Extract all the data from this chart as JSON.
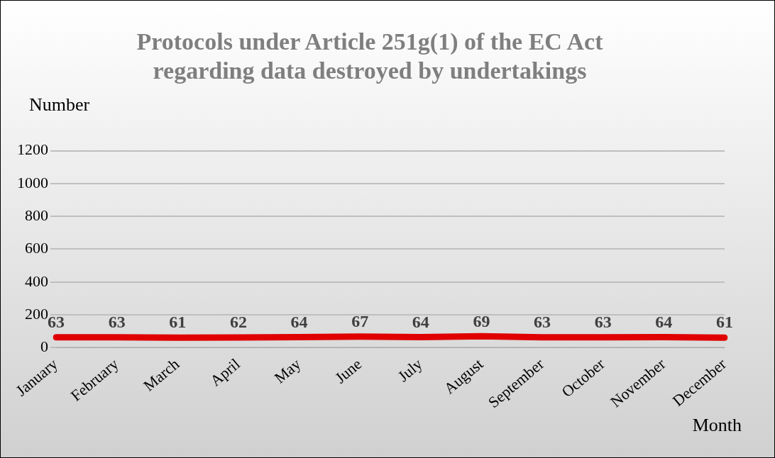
{
  "chart_data": {
    "type": "line",
    "title": "Protocols under Article 251g(1) of the EC Act\nregarding data destroyed by undertakings",
    "xlabel": "Month",
    "ylabel": "Number",
    "categories": [
      "January",
      "February",
      "March",
      "April",
      "May",
      "June",
      "July",
      "August",
      "September",
      "October",
      "November",
      "December"
    ],
    "series": [
      {
        "color": "#e00000",
        "values": [
          63,
          63,
          61,
          62,
          64,
          67,
          64,
          69,
          63,
          63,
          64,
          61
        ]
      }
    ],
    "ylim": [
      0,
      1200
    ],
    "yticks": [
      0,
      200,
      400,
      600,
      800,
      1000,
      1200
    ],
    "grid": "y",
    "legend": false,
    "marker": "none",
    "line_style": "solid",
    "data_labels": true
  }
}
